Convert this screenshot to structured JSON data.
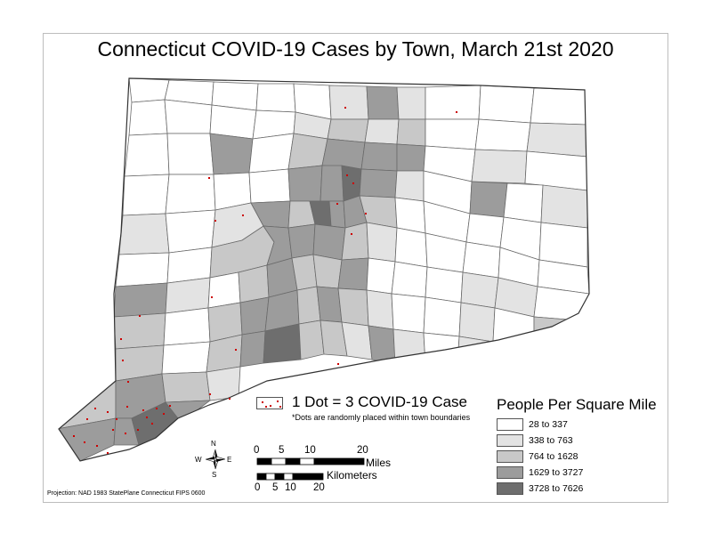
{
  "title": "Connecticut COVID-19 Cases by Town, March 21st 2020",
  "dot_legend": {
    "label": "1 Dot = 3 COVID-19 Case",
    "note": "*Dots are randomly placed within town boundaries",
    "dot_color": "#cc0000"
  },
  "density_legend": {
    "title": "People Per Square Mile",
    "classes": [
      {
        "label": "28 to 337",
        "color": "#ffffff"
      },
      {
        "label": "338 to 763",
        "color": "#e3e3e3"
      },
      {
        "label": "764 to 1628",
        "color": "#c8c8c8"
      },
      {
        "label": "1629 to 3727",
        "color": "#9c9c9c"
      },
      {
        "label": "3728 to 7626",
        "color": "#6e6e6e"
      }
    ]
  },
  "compass": {
    "n": "N",
    "s": "S",
    "e": "E",
    "w": "W"
  },
  "scale_miles": {
    "ticks": [
      "0",
      "5",
      "10",
      "20"
    ],
    "unit": "Miles"
  },
  "scale_km": {
    "ticks": [
      "0",
      "5",
      "10",
      "20"
    ],
    "unit": "Kilometers"
  },
  "projection": "Projection: NAD 1983 StatePlane Connecticut FIPS 0600"
}
